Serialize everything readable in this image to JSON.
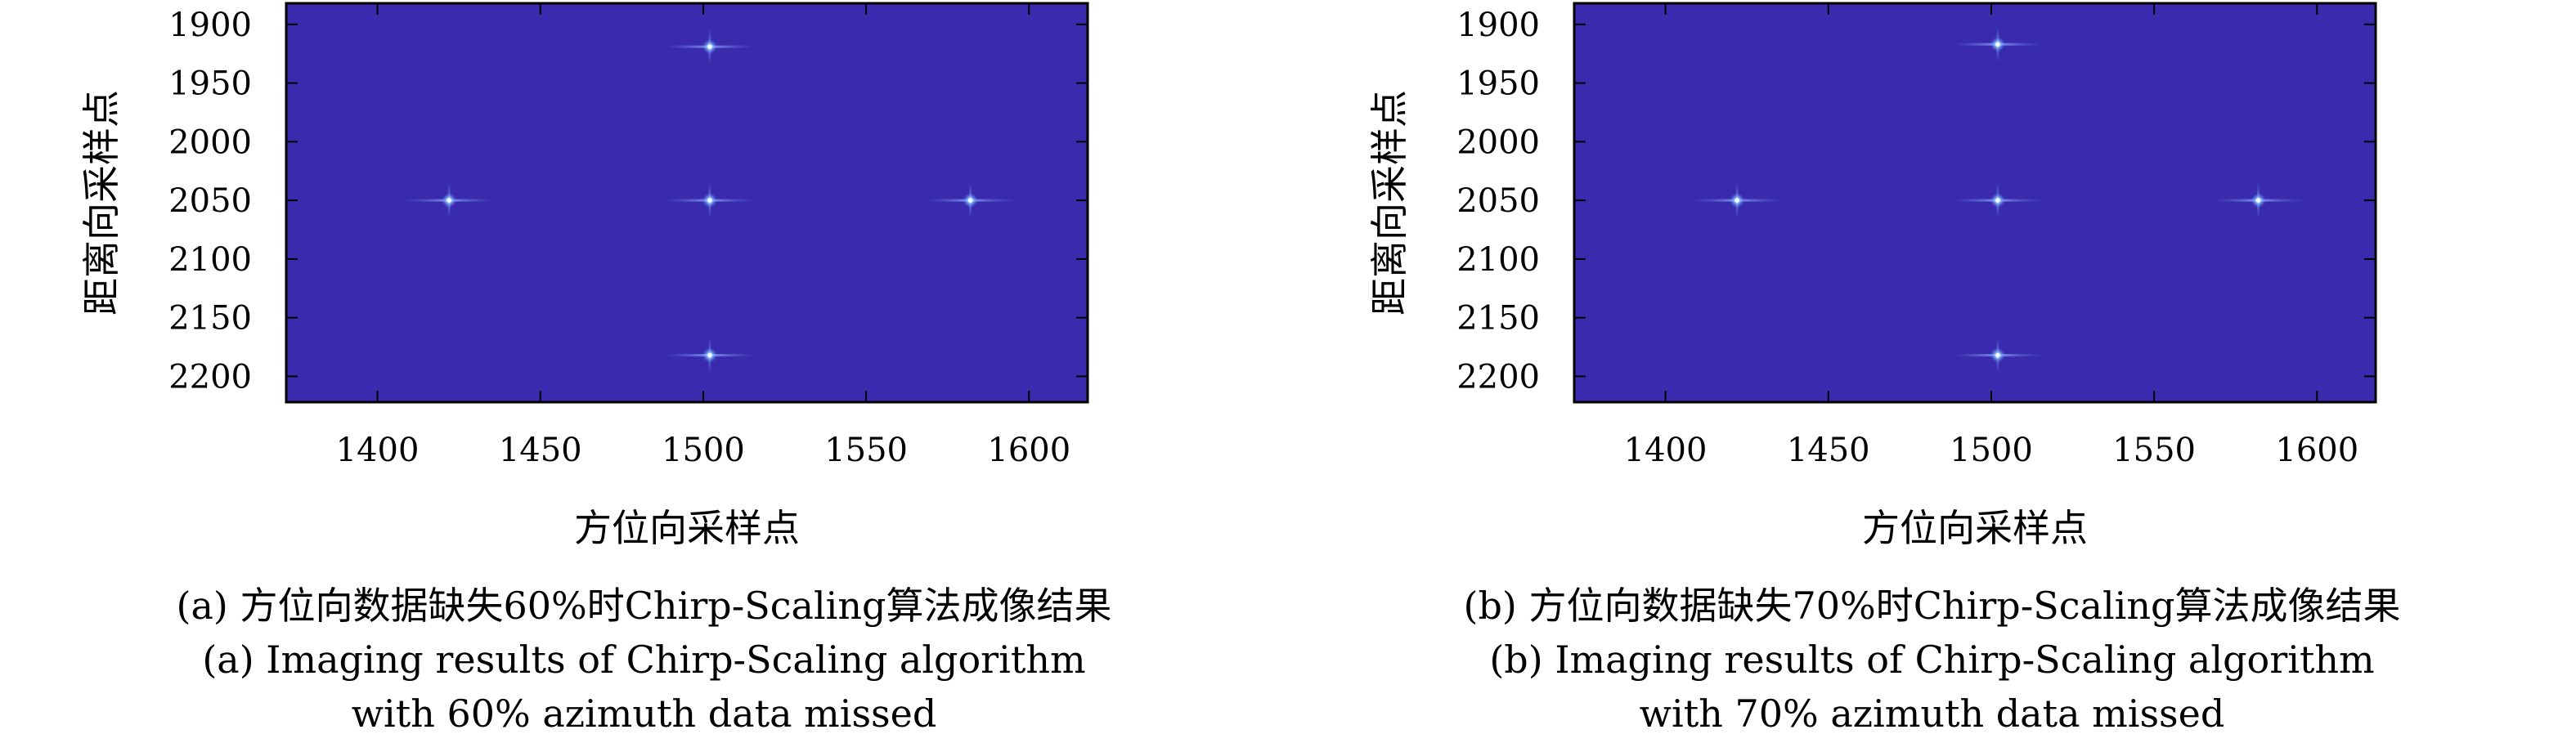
{
  "charts": [
    {
      "caption_cn": "(a) 方位向数据缺失60%时Chirp-Scaling算法成像结果",
      "caption_en_1": "(a) Imaging results of Chirp-Scaling algorithm",
      "caption_en_2": "with 60% azimuth data missed"
    },
    {
      "caption_cn": "(b) 方位向数据缺失70%时Chirp-Scaling算法成像结果",
      "caption_en_1": "(b) Imaging results of Chirp-Scaling algorithm",
      "caption_en_2": "with 70% azimuth data missed"
    }
  ],
  "chart_data": [
    {
      "type": "heatmap",
      "xlabel": "方位向采样点",
      "ylabel": "距离向采样点",
      "xlim": [
        1372,
        1618
      ],
      "ylim": [
        1882,
        2222
      ],
      "y_inverted": true,
      "xticks": [
        1400,
        1450,
        1500,
        1550,
        1600
      ],
      "yticks": [
        1900,
        1950,
        2000,
        2050,
        2100,
        2150,
        2200
      ],
      "background_color": "#3a2bae",
      "point_targets": [
        {
          "x": 1502,
          "y": 1919
        },
        {
          "x": 1422,
          "y": 2050
        },
        {
          "x": 1502,
          "y": 2050
        },
        {
          "x": 1582,
          "y": 2050
        },
        {
          "x": 1502,
          "y": 2182
        }
      ]
    },
    {
      "type": "heatmap",
      "xlabel": "方位向采样点",
      "ylabel": "距离向采样点",
      "xlim": [
        1372,
        1618
      ],
      "ylim": [
        1882,
        2222
      ],
      "y_inverted": true,
      "xticks": [
        1400,
        1450,
        1500,
        1550,
        1600
      ],
      "yticks": [
        1900,
        1950,
        2000,
        2050,
        2100,
        2150,
        2200
      ],
      "background_color": "#3a2bae",
      "point_targets": [
        {
          "x": 1502,
          "y": 1917
        },
        {
          "x": 1422,
          "y": 2050
        },
        {
          "x": 1502,
          "y": 2050
        },
        {
          "x": 1582,
          "y": 2050
        },
        {
          "x": 1502,
          "y": 2182
        }
      ]
    }
  ]
}
